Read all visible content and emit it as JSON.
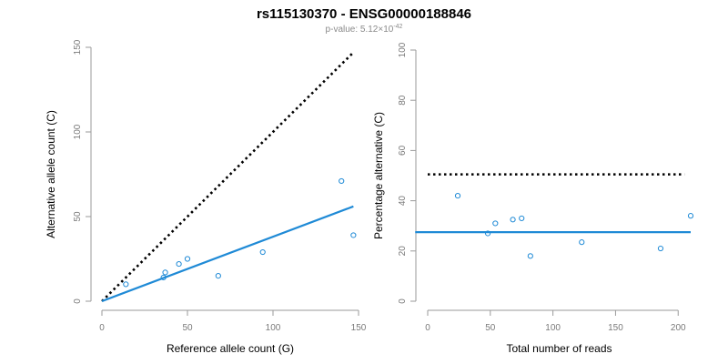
{
  "figure": {
    "title": "rs115130370 - ENSG00000188846",
    "subtitle_prefix": "p-value: 5.12×10",
    "subtitle_exponent": "-42"
  },
  "colors": {
    "points": "#1f8ad6",
    "fit_line": "#1f8ad6",
    "reference_line": "#000000",
    "axis": "#9a9a9a",
    "tick_text": "#7a7a7a"
  },
  "chart_data": [
    {
      "type": "scatter",
      "xlabel": "Reference allele count (G)",
      "ylabel": "Alternative allele count (C)",
      "xlim": [
        0,
        150
      ],
      "ylim": [
        0,
        150
      ],
      "xticks": [
        0,
        50,
        100,
        150
      ],
      "yticks": [
        0,
        50,
        100,
        150
      ],
      "points": [
        {
          "x": 14,
          "y": 10
        },
        {
          "x": 36,
          "y": 14
        },
        {
          "x": 37,
          "y": 17
        },
        {
          "x": 45,
          "y": 22
        },
        {
          "x": 50,
          "y": 25
        },
        {
          "x": 68,
          "y": 15
        },
        {
          "x": 94,
          "y": 29
        },
        {
          "x": 140,
          "y": 71
        },
        {
          "x": 147,
          "y": 39
        }
      ],
      "fit_line": {
        "x": [
          0,
          147
        ],
        "y": [
          0,
          56
        ],
        "style": "solid"
      },
      "reference_line": {
        "x": [
          0,
          147
        ],
        "y": [
          0,
          147
        ],
        "style": "dotted"
      },
      "grid": false
    },
    {
      "type": "scatter",
      "xlabel": "Total number of reads",
      "ylabel": "Percentage alternative (C)",
      "xlim": [
        0,
        210
      ],
      "ylim": [
        0,
        100
      ],
      "xticks": [
        0,
        50,
        100,
        150,
        200
      ],
      "yticks": [
        0,
        20,
        40,
        60,
        80,
        100
      ],
      "points": [
        {
          "x": 24,
          "y": 42
        },
        {
          "x": 48,
          "y": 27
        },
        {
          "x": 54,
          "y": 31
        },
        {
          "x": 68,
          "y": 32.5
        },
        {
          "x": 75,
          "y": 33
        },
        {
          "x": 82,
          "y": 18
        },
        {
          "x": 123,
          "y": 23.5
        },
        {
          "x": 186,
          "y": 21
        },
        {
          "x": 210,
          "y": 34
        }
      ],
      "fit_line": {
        "x": [
          -10,
          210
        ],
        "y": [
          27.5,
          27.5
        ],
        "style": "solid"
      },
      "reference_line": {
        "x": [
          0,
          205
        ],
        "y": [
          50.5,
          50.5
        ],
        "style": "dotted"
      },
      "grid": false
    }
  ]
}
